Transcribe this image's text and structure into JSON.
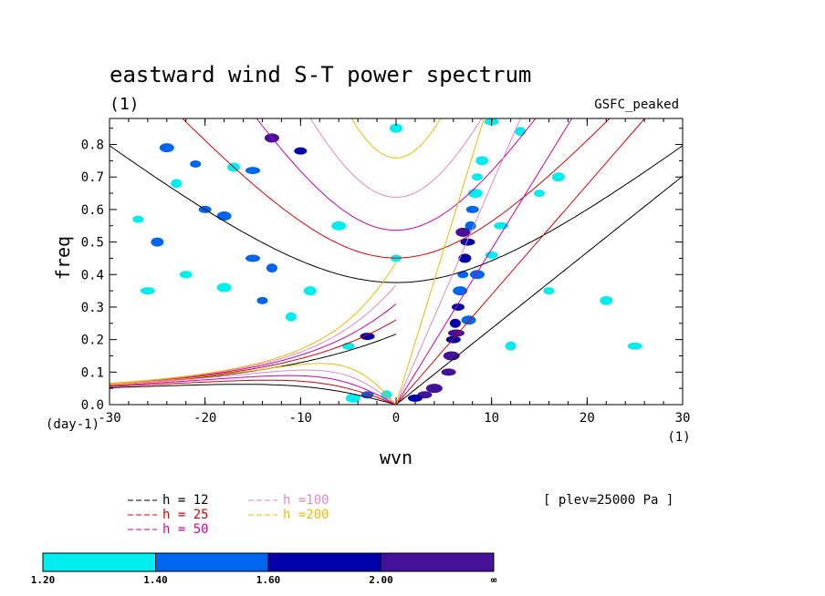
{
  "chart_data": {
    "type": "heatmap",
    "title": "eastward wind S-T power spectrum",
    "subtitle_left": "(1)",
    "subtitle_right": "GSFC_peaked",
    "xlabel": "wvn",
    "ylabel": "freq",
    "x_unit_label": "(1)",
    "y_unit_label": "(day-1)",
    "xlim": [
      -30,
      30
    ],
    "ylim": [
      0,
      0.88
    ],
    "x_ticks": [
      -30,
      -20,
      -10,
      0,
      10,
      20,
      30
    ],
    "y_ticks": [
      0.0,
      0.1,
      0.2,
      0.3,
      0.4,
      0.5,
      0.6,
      0.7,
      0.8
    ],
    "x_tick_labels": [
      "-30",
      "-20",
      "-10",
      "0",
      "10",
      "20",
      "30"
    ],
    "y_tick_labels": [
      "0.0",
      "0.1",
      "0.2",
      "0.3",
      "0.4",
      "0.5",
      "0.6",
      "0.7",
      "0.8"
    ],
    "annotation": "[ plev=25000 Pa ]",
    "dispersion_curves": [
      {
        "label": "h = 12",
        "h": 12,
        "color": "#000000"
      },
      {
        "label": "h = 25",
        "h": 25,
        "color": "#dd0000"
      },
      {
        "label": "h = 50",
        "h": 50,
        "color": "#cc00aa"
      },
      {
        "label": "h =100",
        "h": 100,
        "color": "#dd88cc"
      },
      {
        "label": "h =200",
        "h": 200,
        "color": "#eebb00"
      }
    ],
    "colorbar": {
      "levels": [
        "1.20",
        "1.40",
        "1.60",
        "2.00",
        "∞"
      ],
      "colors": [
        "#00eeee",
        "#0066ee",
        "#0000aa",
        "#441199"
      ]
    },
    "blobs": [
      {
        "wvn": 5.5,
        "freq": 0.1,
        "level": 3
      },
      {
        "wvn": 5.8,
        "freq": 0.15,
        "level": 3
      },
      {
        "wvn": 6.0,
        "freq": 0.2,
        "level": 2
      },
      {
        "wvn": 6.2,
        "freq": 0.25,
        "level": 2
      },
      {
        "wvn": 6.5,
        "freq": 0.3,
        "level": 2
      },
      {
        "wvn": 6.7,
        "freq": 0.35,
        "level": 1
      },
      {
        "wvn": 7.0,
        "freq": 0.4,
        "level": 1
      },
      {
        "wvn": 7.2,
        "freq": 0.45,
        "level": 2
      },
      {
        "wvn": 7.5,
        "freq": 0.5,
        "level": 2
      },
      {
        "wvn": 7.8,
        "freq": 0.55,
        "level": 1
      },
      {
        "wvn": 8.0,
        "freq": 0.6,
        "level": 1
      },
      {
        "wvn": 8.3,
        "freq": 0.65,
        "level": 0
      },
      {
        "wvn": 8.5,
        "freq": 0.7,
        "level": 0
      },
      {
        "wvn": 9.0,
        "freq": 0.75,
        "level": 0
      },
      {
        "wvn": 10.0,
        "freq": 0.87,
        "level": 0
      },
      {
        "wvn": 7.0,
        "freq": 0.53,
        "level": 3
      },
      {
        "wvn": 6.3,
        "freq": 0.22,
        "level": 3
      },
      {
        "wvn": 7.6,
        "freq": 0.26,
        "level": 1
      },
      {
        "wvn": 3.0,
        "freq": 0.03,
        "level": 3
      },
      {
        "wvn": 4.0,
        "freq": 0.05,
        "level": 3
      },
      {
        "wvn": 2.0,
        "freq": 0.02,
        "level": 2
      },
      {
        "wvn": -1.0,
        "freq": 0.03,
        "level": 0
      },
      {
        "wvn": -3.0,
        "freq": 0.03,
        "level": 1
      },
      {
        "wvn": -4.5,
        "freq": 0.02,
        "level": 0
      },
      {
        "wvn": 0.0,
        "freq": 0.45,
        "level": 0
      },
      {
        "wvn": 0.0,
        "freq": 0.85,
        "level": 0
      },
      {
        "wvn": -3.0,
        "freq": 0.21,
        "level": 2
      },
      {
        "wvn": -13.0,
        "freq": 0.82,
        "level": 3
      },
      {
        "wvn": -10.0,
        "freq": 0.78,
        "level": 2
      },
      {
        "wvn": -24.0,
        "freq": 0.79,
        "level": 1
      },
      {
        "wvn": -21.0,
        "freq": 0.74,
        "level": 1
      },
      {
        "wvn": -17.0,
        "freq": 0.73,
        "level": 0
      },
      {
        "wvn": -15.0,
        "freq": 0.72,
        "level": 1
      },
      {
        "wvn": -23.0,
        "freq": 0.68,
        "level": 0
      },
      {
        "wvn": -20.0,
        "freq": 0.6,
        "level": 1
      },
      {
        "wvn": -18.0,
        "freq": 0.58,
        "level": 1
      },
      {
        "wvn": -27.0,
        "freq": 0.57,
        "level": 0
      },
      {
        "wvn": -25.0,
        "freq": 0.5,
        "level": 1
      },
      {
        "wvn": -15.0,
        "freq": 0.45,
        "level": 1
      },
      {
        "wvn": -13.0,
        "freq": 0.42,
        "level": 1
      },
      {
        "wvn": -22.0,
        "freq": 0.4,
        "level": 0
      },
      {
        "wvn": -18.0,
        "freq": 0.36,
        "level": 0
      },
      {
        "wvn": -14.0,
        "freq": 0.32,
        "level": 1
      },
      {
        "wvn": -9.0,
        "freq": 0.35,
        "level": 0
      },
      {
        "wvn": -26.0,
        "freq": 0.35,
        "level": 0
      },
      {
        "wvn": -11.0,
        "freq": 0.27,
        "level": 0
      },
      {
        "wvn": -5.0,
        "freq": 0.18,
        "level": 0
      },
      {
        "wvn": -6.0,
        "freq": 0.55,
        "level": 0
      },
      {
        "wvn": 15.0,
        "freq": 0.65,
        "level": 0
      },
      {
        "wvn": 17.0,
        "freq": 0.7,
        "level": 0
      },
      {
        "wvn": 11.0,
        "freq": 0.55,
        "level": 0
      },
      {
        "wvn": 13.0,
        "freq": 0.84,
        "level": 0
      },
      {
        "wvn": 10.0,
        "freq": 0.46,
        "level": 0
      },
      {
        "wvn": 8.5,
        "freq": 0.4,
        "level": 1
      },
      {
        "wvn": 16.0,
        "freq": 0.35,
        "level": 0
      },
      {
        "wvn": 22.0,
        "freq": 0.32,
        "level": 0
      },
      {
        "wvn": 25.0,
        "freq": 0.18,
        "level": 0
      },
      {
        "wvn": 12.0,
        "freq": 0.18,
        "level": 0
      }
    ]
  }
}
